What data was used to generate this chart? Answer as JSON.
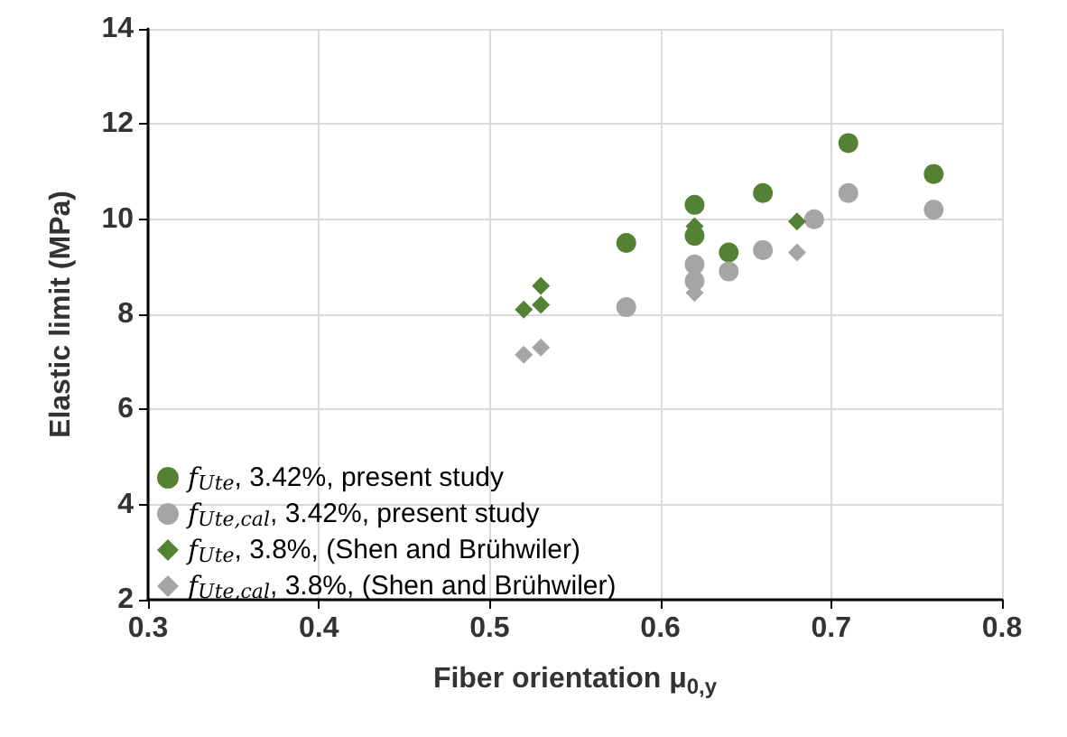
{
  "chart_data": {
    "type": "scatter",
    "xlabel": "Fiber orientation μ$_{0,y}$",
    "ylabel": "Elastic limit (MPa)",
    "xlim": [
      0.3,
      0.8
    ],
    "xticks": [
      0.3,
      0.4,
      0.5,
      0.6,
      0.7,
      0.8
    ],
    "ylim": [
      2,
      14
    ],
    "yticks": [
      2,
      4,
      6,
      8,
      10,
      12,
      14
    ],
    "grid": true,
    "legend": "bottom left",
    "series": [
      {
        "name": "f$_{Ute}$, 3.42%, present study",
        "color": "#548235",
        "marker": "circle",
        "x": [
          0.58,
          0.62,
          0.62,
          0.64,
          0.66,
          0.71,
          0.76
        ],
        "values": [
          9.5,
          10.3,
          9.65,
          9.3,
          10.55,
          11.6,
          10.95
        ]
      },
      {
        "name": "f$_{Ute,cal}$, 3.42%, present study",
        "color": "#a5a5a5",
        "marker": "circle",
        "x": [
          0.58,
          0.62,
          0.62,
          0.64,
          0.66,
          0.69,
          0.71,
          0.76
        ],
        "values": [
          8.15,
          9.05,
          8.7,
          8.9,
          9.35,
          10.0,
          10.55,
          10.2
        ]
      },
      {
        "name": "f$_{Ute}$, 3.8%, (Shen and Brühwiler)",
        "color": "#548235",
        "marker": "diamond",
        "x": [
          0.52,
          0.53,
          0.53,
          0.62,
          0.68
        ],
        "values": [
          8.1,
          8.2,
          8.6,
          9.85,
          9.95
        ]
      },
      {
        "name": "f$_{Ute,cal}$, 3.8%, (Shen and Brühwiler)",
        "color": "#a5a5a5",
        "marker": "diamond",
        "x": [
          0.52,
          0.53,
          0.62,
          0.68
        ],
        "values": [
          7.15,
          7.3,
          8.45,
          9.3
        ]
      }
    ]
  }
}
